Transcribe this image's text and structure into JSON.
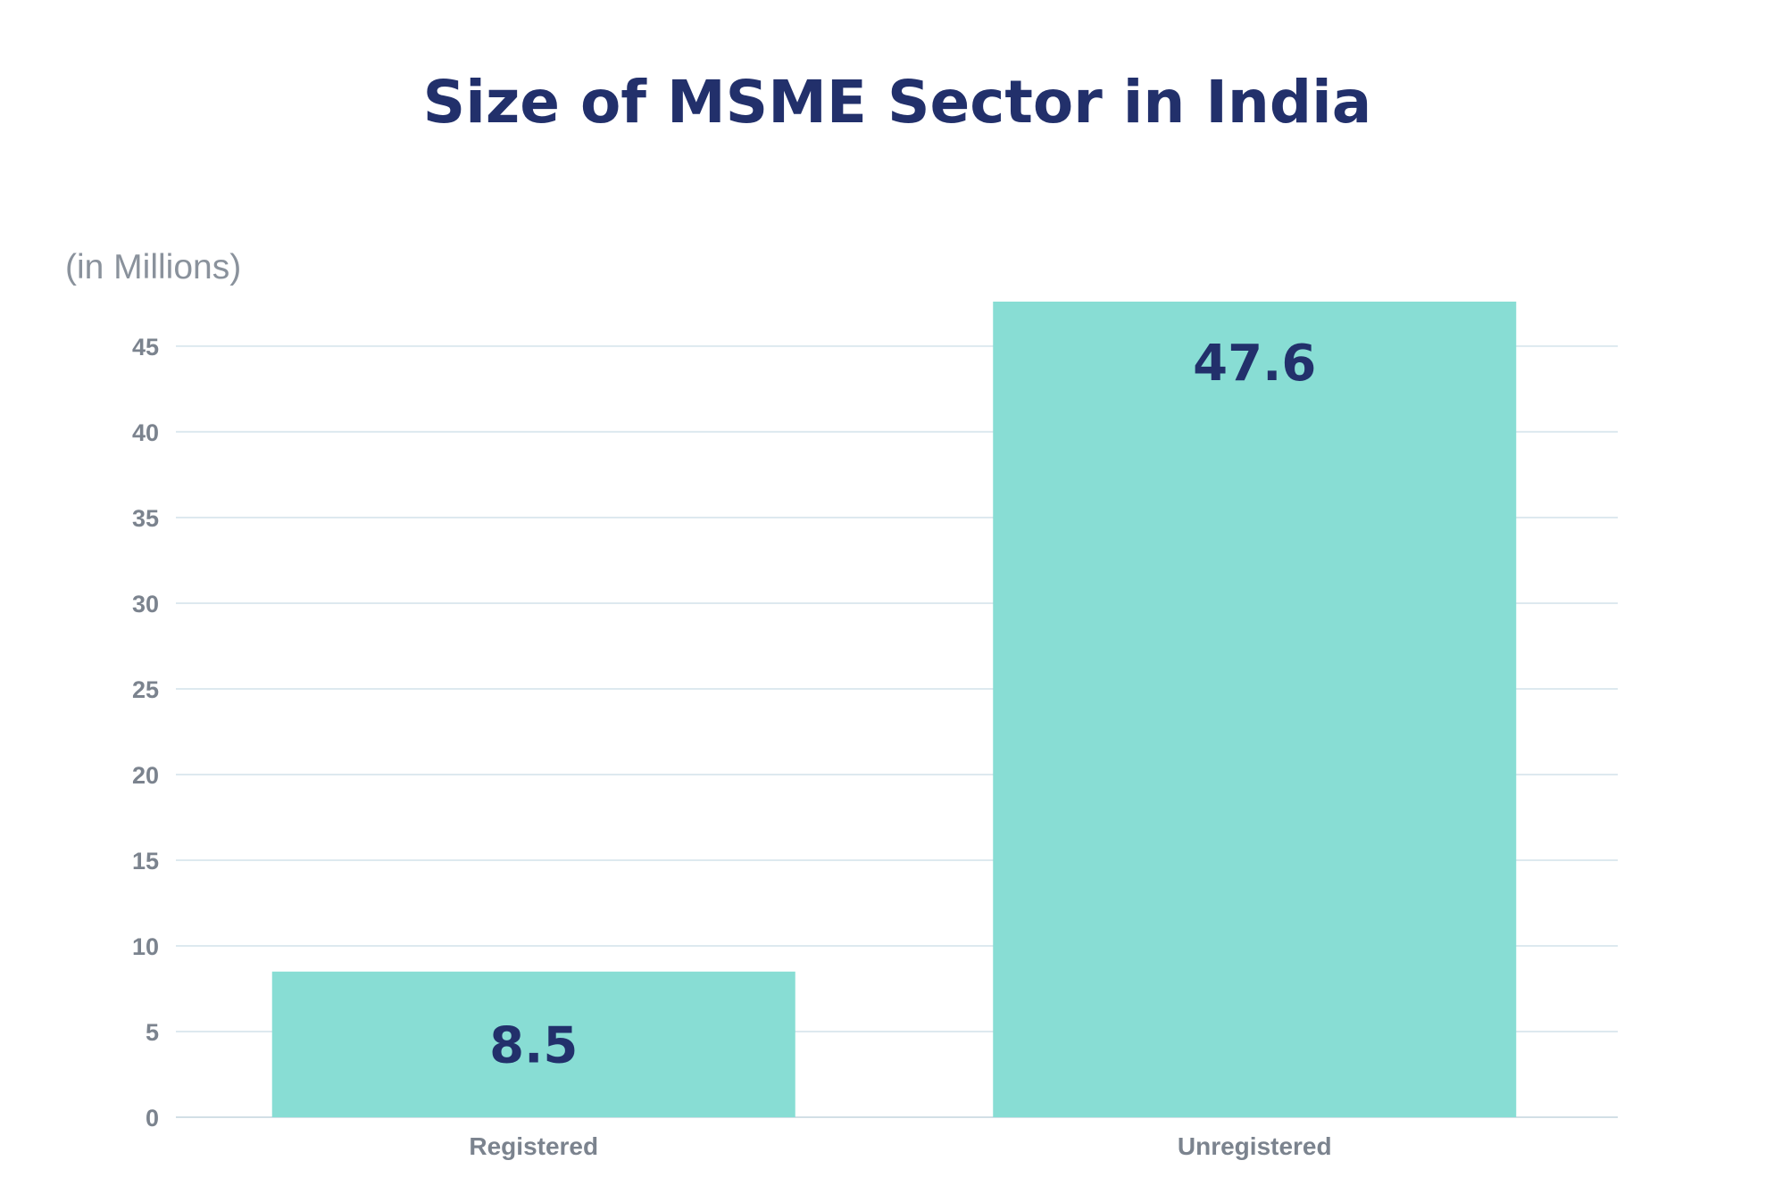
{
  "chart_data": {
    "type": "bar",
    "title": "Size of MSME Sector in India",
    "unit_label": "(in Millions)",
    "xlabel": "",
    "ylabel": "",
    "categories": [
      "Registered",
      "Unregistered"
    ],
    "values": [
      8.5,
      47.6
    ],
    "value_labels": [
      "8.5",
      "47.6"
    ],
    "ylim": [
      0,
      47.6
    ],
    "yticks": [
      0,
      5,
      10,
      15,
      20,
      25,
      30,
      35,
      40,
      45
    ],
    "ytick_labels": [
      "0",
      "5",
      "10",
      "15",
      "20",
      "25",
      "30",
      "35",
      "40",
      "45"
    ],
    "grid": true,
    "legend": "none",
    "colors": {
      "bar": "#88ddd4",
      "title": "#22306b",
      "value_label": "#22306b",
      "axis_text": "#7b838e",
      "gridline": "#dde9ef"
    }
  }
}
